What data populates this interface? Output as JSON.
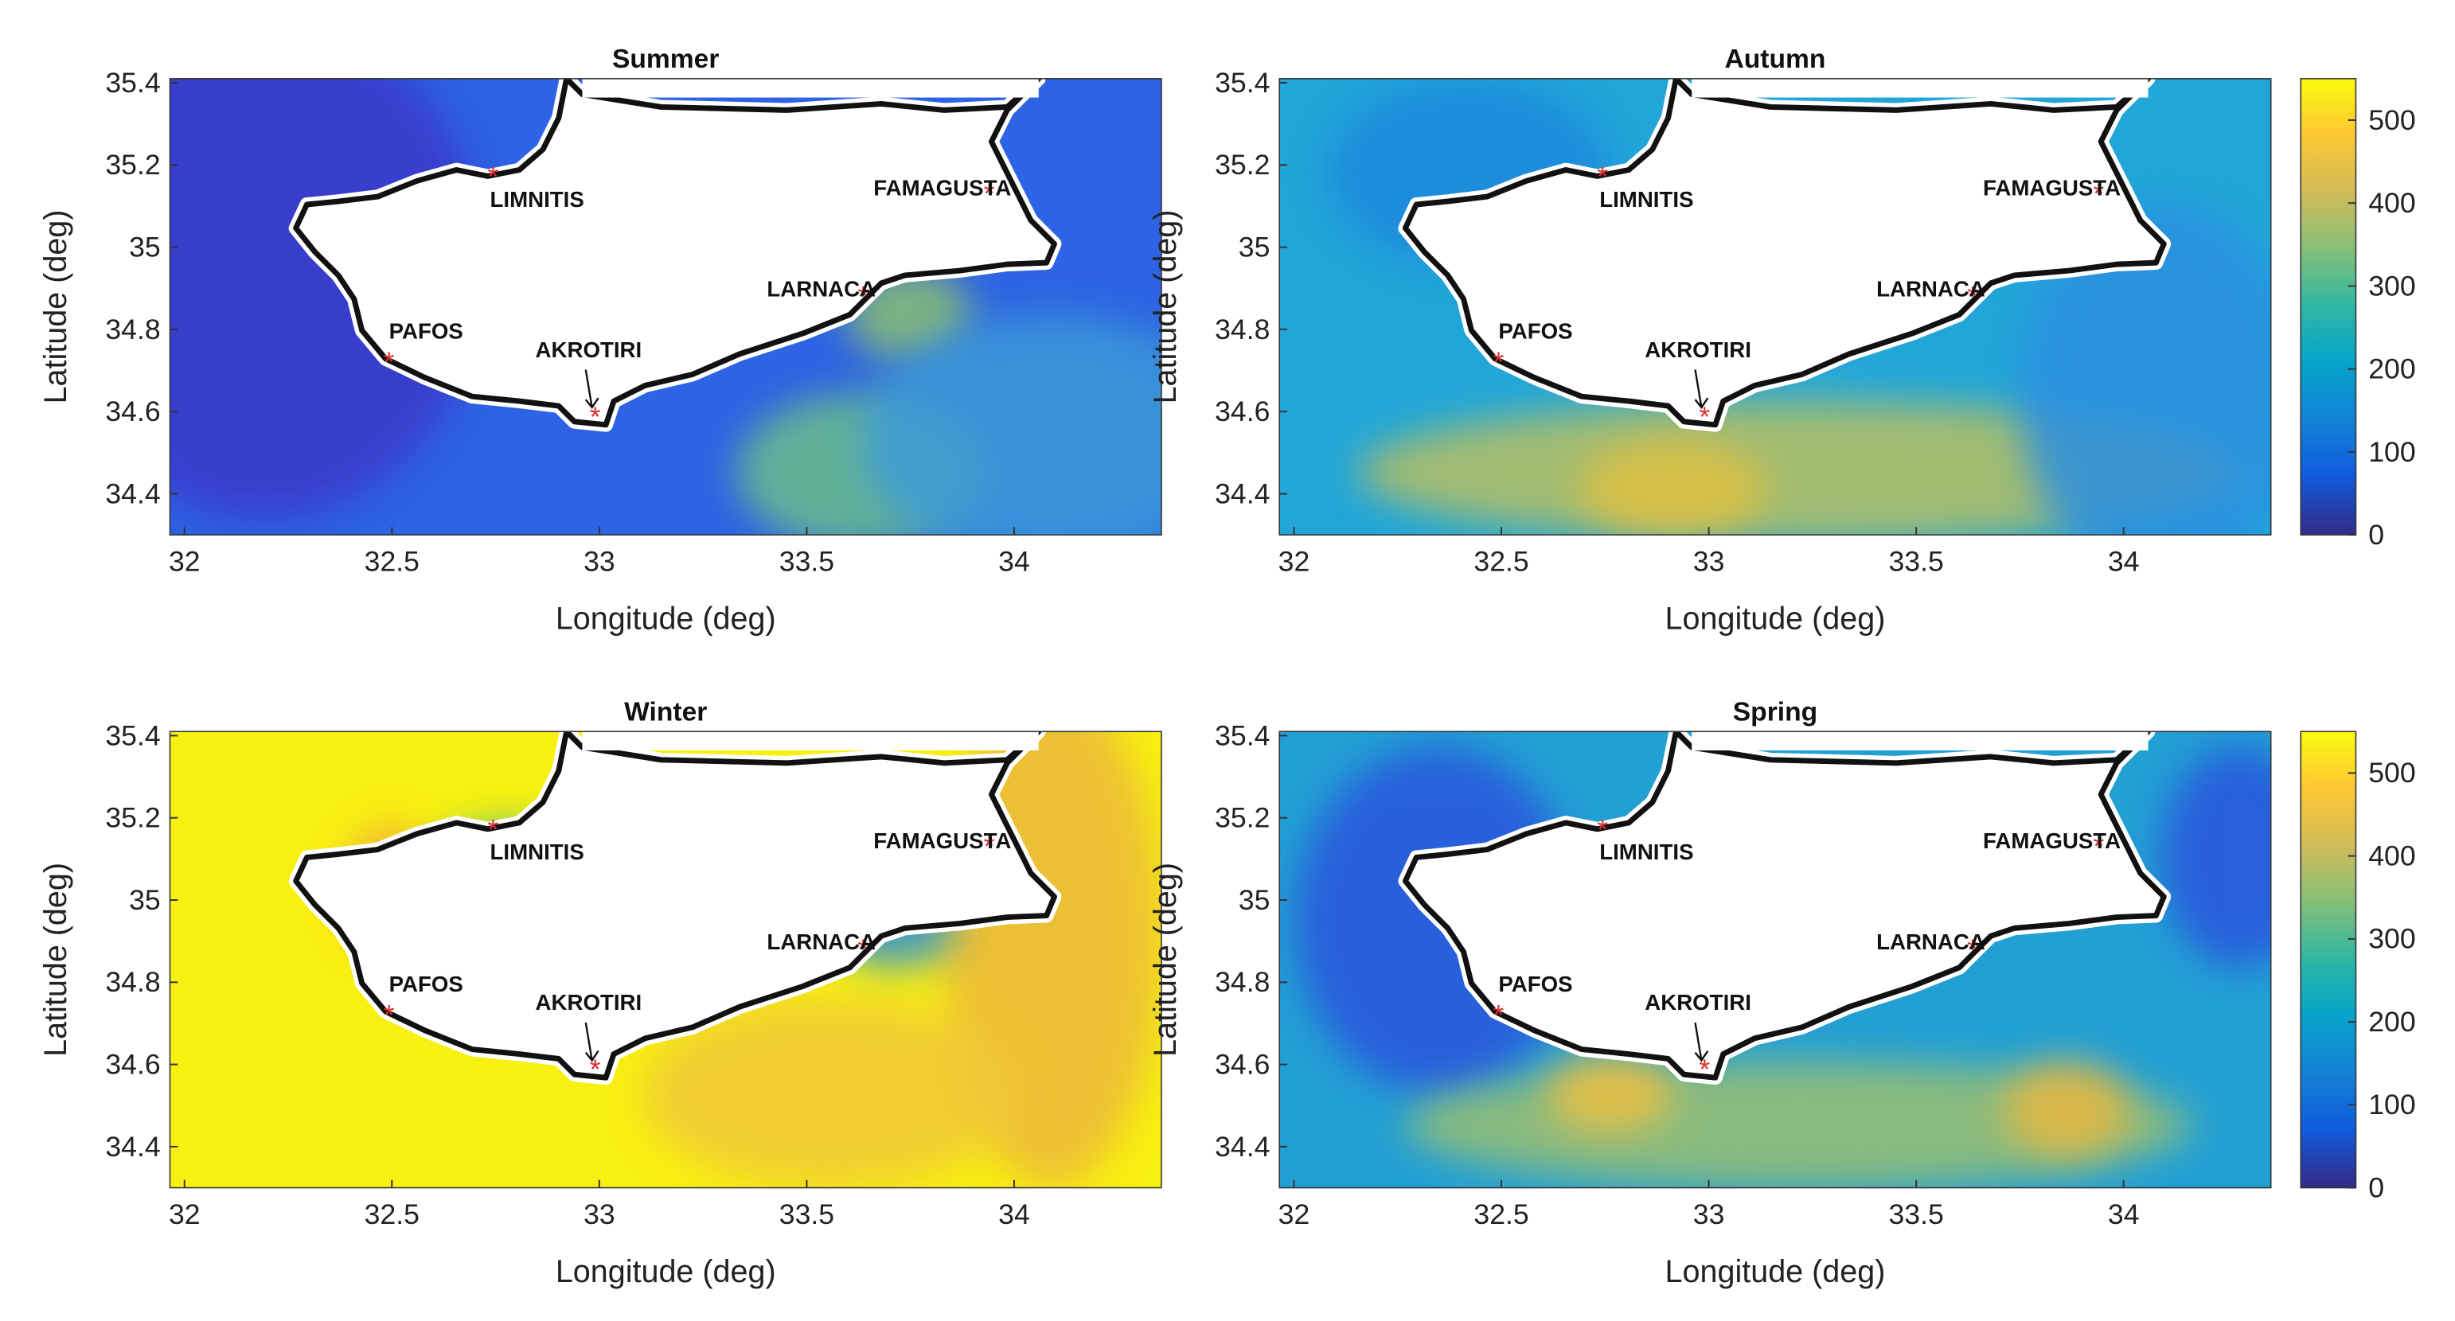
{
  "axes": {
    "xlabel": "Longitude (deg)",
    "ylabel": "Latitude (deg)",
    "xlim": [
      31.965,
      34.355
    ],
    "ylim": [
      34.3,
      35.41
    ],
    "xticks": [
      32,
      32.5,
      33,
      33.5,
      34
    ],
    "yticks": [
      34.4,
      34.6,
      34.8,
      35,
      35.2,
      35.4
    ]
  },
  "panels": [
    {
      "title": "Summer"
    },
    {
      "title": "Autumn"
    },
    {
      "title": "Winter"
    },
    {
      "title": "Spring"
    }
  ],
  "places": [
    {
      "name": "LIMNITIS",
      "lon": 32.744,
      "lat": 35.171
    },
    {
      "name": "PAFOS",
      "lon": 32.493,
      "lat": 34.72
    },
    {
      "name": "AKROTIRI",
      "lon": 32.99,
      "lat": 34.587
    },
    {
      "name": "LARNACA",
      "lon": 33.636,
      "lat": 34.88
    },
    {
      "name": "FAMAGUSTA",
      "lon": 33.94,
      "lat": 35.13
    }
  ],
  "colorbar": {
    "clim": [
      0,
      550
    ],
    "ticks": [
      0,
      100,
      200,
      300,
      400,
      500
    ]
  }
}
